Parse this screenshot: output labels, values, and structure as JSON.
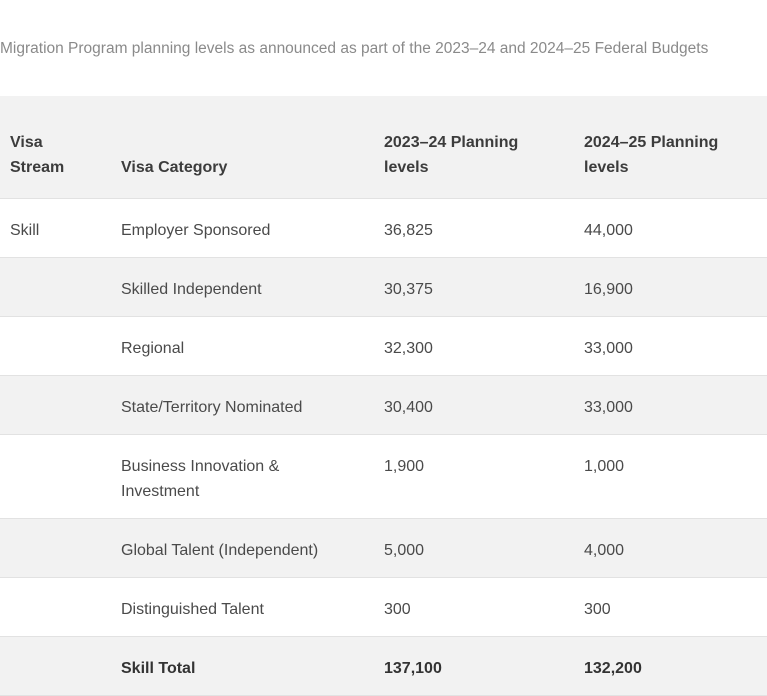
{
  "caption": "Migration Program planning levels as announced as part of the 2023–24 and 2024–25 Federal Budgets",
  "table": {
    "headers": {
      "stream_line1": "Visa",
      "stream_line2": "Stream",
      "category": "Visa Category",
      "y2023_line1": "2023–24 Planning",
      "y2023_line2": "levels",
      "y2024_line1": "2024–25 Planning",
      "y2024_line2": "levels"
    },
    "rows": [
      {
        "stream": "Skill",
        "category": "Employer Sponsored",
        "y2023": "36,825",
        "y2024": "44,000"
      },
      {
        "stream": "",
        "category": "Skilled Independent",
        "y2023": "30,375",
        "y2024": "16,900"
      },
      {
        "stream": "",
        "category": "Regional",
        "y2023": "32,300",
        "y2024": "33,000"
      },
      {
        "stream": "",
        "category": "State/Territory Nominated",
        "y2023": "30,400",
        "y2024": "33,000"
      },
      {
        "stream": "",
        "category_line1": "Business Innovation &",
        "category_line2": "Investment",
        "y2023": "1,900",
        "y2024": "1,000"
      },
      {
        "stream": "",
        "category": "Global Talent (Independent)",
        "y2023": "5,000",
        "y2024": "4,000"
      },
      {
        "stream": "",
        "category": "Distinguished Talent",
        "y2023": "300",
        "y2024": "300"
      },
      {
        "stream": "",
        "category": "Skill Total",
        "y2023": "137,100",
        "y2024": "132,200"
      }
    ]
  }
}
